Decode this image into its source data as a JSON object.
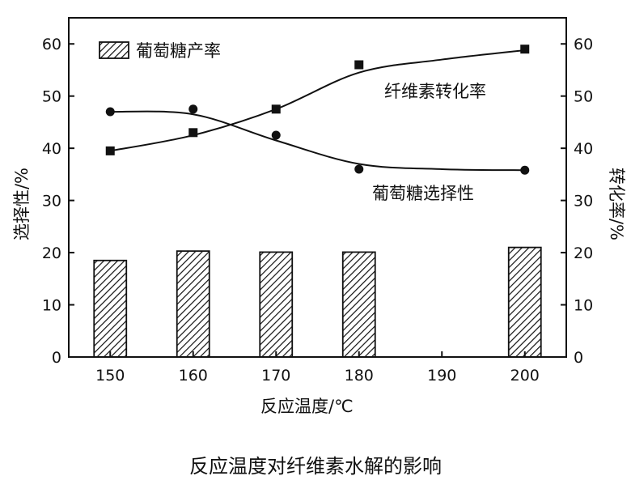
{
  "caption": "反应温度对纤维素水解的影响",
  "chart_data": {
    "type": "bar+line",
    "x": [
      150,
      160,
      170,
      180,
      190,
      200
    ],
    "xlabel": "反应温度/℃",
    "ylabel_left": "选择性/%",
    "ylabel_right": "转化率/%",
    "ylim": [
      0,
      65
    ],
    "yticks": [
      0,
      10,
      20,
      30,
      40,
      50,
      60
    ],
    "xlim": [
      145,
      205
    ],
    "bars": {
      "name": "葡萄糖产率",
      "x": [
        150,
        160,
        170,
        180,
        200
      ],
      "values": [
        18.5,
        20.3,
        20.1,
        20.1,
        21.0
      ],
      "pattern": "hatched"
    },
    "lines": [
      {
        "name": "纤维素转化率",
        "marker": "square",
        "x": [
          150,
          160,
          170,
          180,
          200
        ],
        "values": [
          39.5,
          43.0,
          47.5,
          56.0,
          59.0
        ],
        "curve": [
          [
            150,
            39.5
          ],
          [
            160,
            42.5
          ],
          [
            170,
            47.5
          ],
          [
            180,
            54.5
          ],
          [
            190,
            57.0
          ],
          [
            200,
            58.8
          ]
        ]
      },
      {
        "name": "葡萄糖选择性",
        "marker": "circle",
        "x": [
          150,
          160,
          170,
          180,
          200
        ],
        "values": [
          47.0,
          47.5,
          42.5,
          36.0,
          35.8
        ],
        "curve": [
          [
            150,
            47.0
          ],
          [
            160,
            46.5
          ],
          [
            170,
            41.5
          ],
          [
            180,
            37.0
          ],
          [
            190,
            36.0
          ],
          [
            200,
            35.8
          ]
        ]
      }
    ],
    "legend": "top-left",
    "grid": false
  }
}
